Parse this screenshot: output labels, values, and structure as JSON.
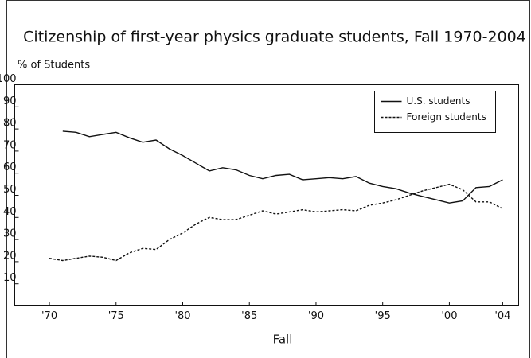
{
  "chart_data": {
    "type": "line",
    "title": "Citizenship of first-year physics graduate students, Fall 1970-2004",
    "y_label": "% of Students",
    "x_label": "Fall",
    "xlim": [
      1967.4,
      2005.2
    ],
    "xticks": [
      {
        "value": 1970,
        "label": "'70"
      },
      {
        "value": 1975,
        "label": "'75"
      },
      {
        "value": 1980,
        "label": "'80"
      },
      {
        "value": 1985,
        "label": "'85"
      },
      {
        "value": 1990,
        "label": "'90"
      },
      {
        "value": 1995,
        "label": "'95"
      },
      {
        "value": 2000,
        "label": "'00"
      },
      {
        "value": 2004,
        "label": "'04"
      }
    ],
    "ylim": [
      0,
      100
    ],
    "yticks": [
      10,
      20,
      30,
      40,
      50,
      60,
      70,
      80,
      90,
      100
    ],
    "legend": "upper right",
    "series": [
      {
        "name": "U.S. students",
        "color": "#111111",
        "dash": "solid",
        "x": [
          1971,
          1972,
          1973,
          1974,
          1975,
          1976,
          1977,
          1978,
          1979,
          1980,
          1981,
          1982,
          1983,
          1984,
          1985,
          1986,
          1987,
          1988,
          1989,
          1990,
          1991,
          1992,
          1993,
          1994,
          1995,
          1996,
          1997,
          1998,
          1999,
          2000,
          2001,
          2002,
          2003,
          2004
        ],
        "values": [
          79,
          78.5,
          76.5,
          77.5,
          78.5,
          76,
          74,
          75,
          71,
          68,
          64.5,
          61,
          62.5,
          61.5,
          59,
          57.5,
          59,
          59.5,
          57,
          57.5,
          58,
          57.5,
          58.5,
          55.5,
          54,
          53,
          51,
          49.5,
          48,
          46.5,
          47.5,
          53.5,
          54,
          57
        ]
      },
      {
        "name": "Foreign students",
        "color": "#111111",
        "dash": "dashed",
        "x": [
          1970,
          1971,
          1972,
          1973,
          1974,
          1975,
          1976,
          1977,
          1978,
          1979,
          1980,
          1981,
          1982,
          1983,
          1984,
          1985,
          1986,
          1987,
          1988,
          1989,
          1990,
          1991,
          1992,
          1993,
          1994,
          1995,
          1996,
          1997,
          1998,
          1999,
          2000,
          2001,
          2002,
          2003,
          2004
        ],
        "values": [
          21.5,
          20.5,
          21.5,
          22.5,
          22,
          20.5,
          24,
          26,
          25.5,
          30,
          33,
          37,
          40,
          39,
          39,
          41,
          43,
          41.5,
          42.5,
          43.5,
          42.5,
          43,
          43.5,
          43,
          45.5,
          46.5,
          48,
          50,
          52,
          53.5,
          55,
          52.5,
          47,
          47,
          44
        ]
      }
    ]
  }
}
